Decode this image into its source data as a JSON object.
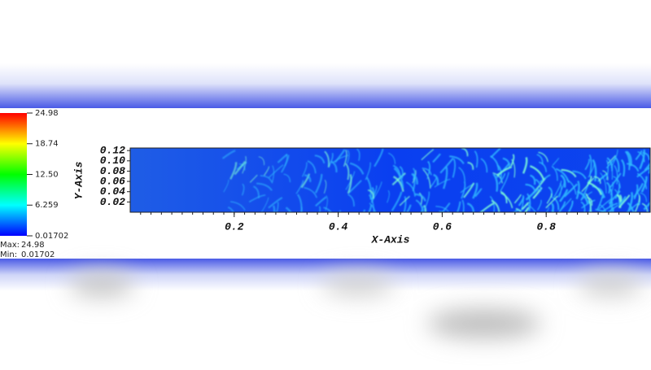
{
  "chart_data": {
    "type": "field",
    "x_label": "X-Axis",
    "y_label": "Y-Axis",
    "xlim": [
      0,
      1
    ],
    "ylim": [
      0,
      0.125
    ],
    "xticks": [
      0.2,
      0.4,
      0.6,
      0.8
    ],
    "yticks": [
      0.02,
      0.04,
      0.06,
      0.08,
      {
        "value": 0.1,
        "label": "0.10"
      },
      0.12
    ],
    "colorbar": {
      "range": [
        0.01702,
        24.98
      ],
      "ticks": [
        24.98,
        18.74,
        {
          "value": 12.5,
          "label": "12.50"
        },
        6.259,
        0.01702
      ],
      "colors": [
        "#0000ff",
        "#00ffff",
        "#00ff00",
        "#ffff00",
        "#ff0000"
      ],
      "max_label": "Max:",
      "max": 24.98,
      "min_label": "Min:",
      "min": 0.01702
    }
  }
}
